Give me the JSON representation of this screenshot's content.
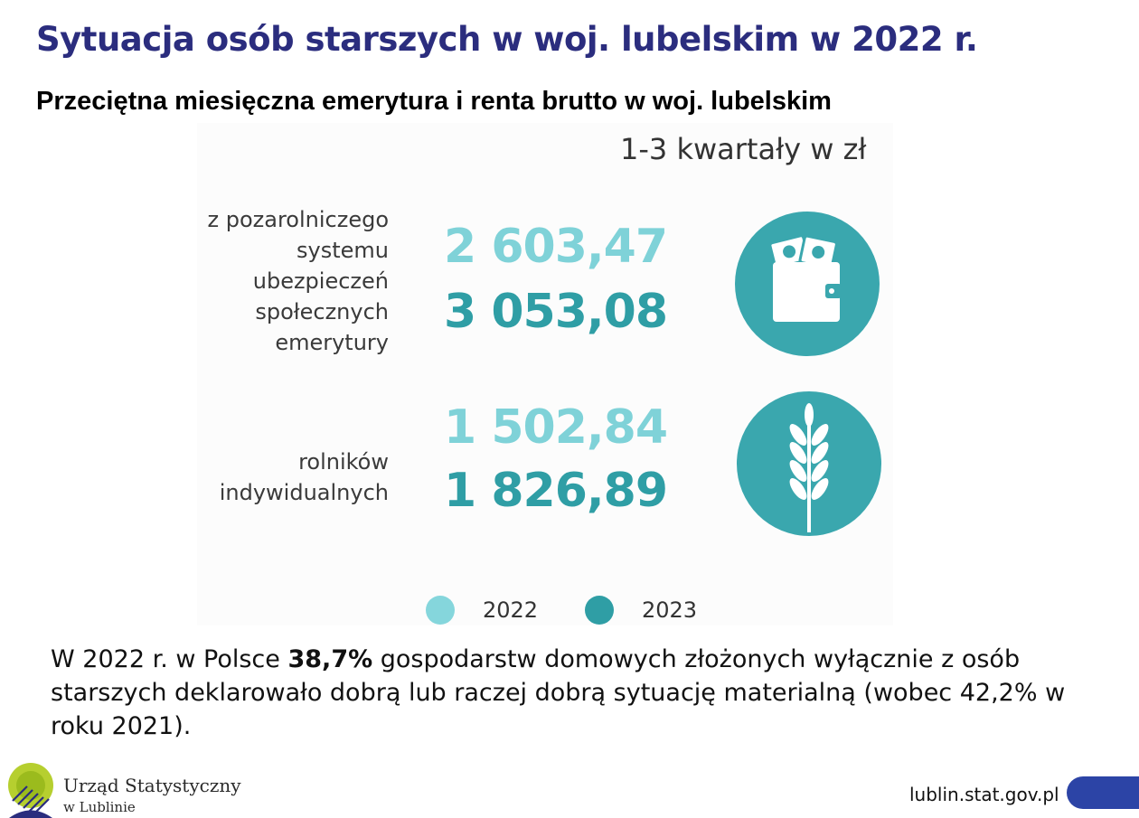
{
  "header": {
    "title": "Sytuacja osób starszych w woj. lubelskim w 2022 r.",
    "subtitle": "Przeciętna miesięczna emerytura i renta brutto w woj. lubelskim"
  },
  "infographic": {
    "period": "1-3 kwartały w zł",
    "groups": [
      {
        "label_lines": [
          "z pozarolniczego",
          "systemu",
          "ubezpieczeń",
          "społecznych",
          "emerytury"
        ],
        "value_2022": "2 603,47",
        "value_2023": "3 053,08",
        "icon": "wallet-money-icon"
      },
      {
        "label_lines": [
          "rolników",
          "indywidualnych"
        ],
        "value_2022": "1 502,84",
        "value_2023": "1 826,89",
        "icon": "wheat-icon"
      }
    ],
    "legend": [
      {
        "label": "2022",
        "color": "#85d6dc"
      },
      {
        "label": "2023",
        "color": "#2f9ea5"
      }
    ]
  },
  "paragraph": {
    "prefix": "W 2022 r. w Polsce ",
    "highlight": "38,7%",
    "suffix": " gospodarstw domowych złożonych wyłącznie z osób starszych deklarowało dobrą lub raczej dobrą sytuację materialną (wobec 42,2% w roku 2021)."
  },
  "footer": {
    "org_line1": "Urząd Statystyczny",
    "org_line2": "w Lublinie",
    "website": "lublin.stat.gov.pl",
    "logo_icon": "gus-logo-icon",
    "accent_color": "#2c44a6"
  }
}
